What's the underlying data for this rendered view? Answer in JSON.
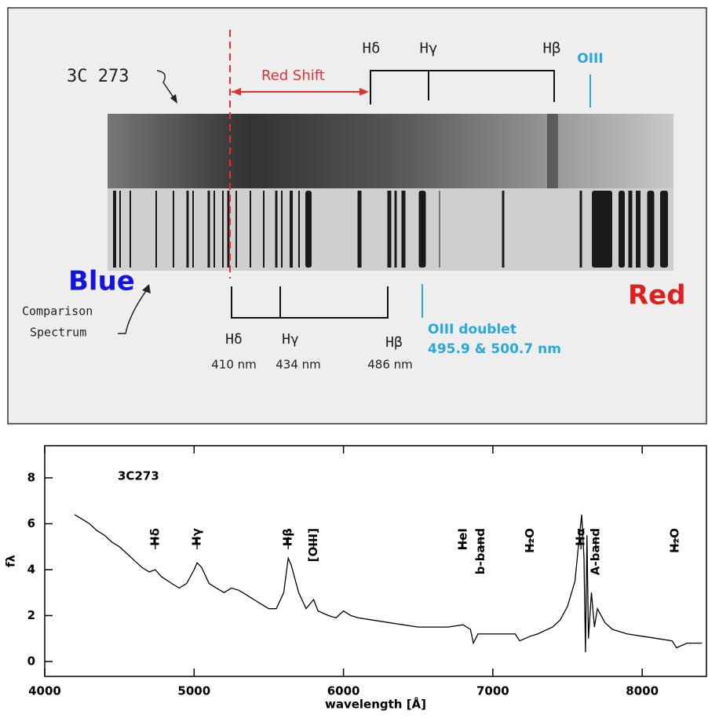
{
  "diagram": {
    "object_label": "3C 273",
    "redshift_label": "Red Shift",
    "observed_lines": [
      "Hδ",
      "Hγ",
      "Hβ"
    ],
    "observed_oiii": "OIII",
    "blue_label": "Blue",
    "red_label": "Red",
    "comparison_label": [
      "Comparison",
      "Spectrum"
    ],
    "rest_lines": [
      {
        "name": "Hδ",
        "wavelength": "410 nm"
      },
      {
        "name": "Hγ",
        "wavelength": "434 nm"
      },
      {
        "name": "Hβ",
        "wavelength": "486 nm"
      }
    ],
    "oiii_label": [
      "OIII doublet",
      "495.9 & 500.7 nm"
    ]
  },
  "chart_data": {
    "type": "line",
    "xlabel": "wavelength [Å]",
    "ylabel": "fλ",
    "annotation": "3C273",
    "x": [
      4200,
      4250,
      4300,
      4350,
      4400,
      4450,
      4500,
      4550,
      4600,
      4650,
      4700,
      4740,
      4780,
      4850,
      4900,
      4950,
      5000,
      5020,
      5050,
      5100,
      5150,
      5200,
      5250,
      5300,
      5350,
      5400,
      5450,
      5500,
      5550,
      5600,
      5630,
      5650,
      5700,
      5750,
      5800,
      5830,
      5900,
      5950,
      6000,
      6050,
      6100,
      6200,
      6300,
      6400,
      6500,
      6600,
      6700,
      6800,
      6850,
      6870,
      6900,
      7000,
      7100,
      7150,
      7180,
      7250,
      7300,
      7400,
      7450,
      7500,
      7550,
      7580,
      7595,
      7610,
      7620,
      7630,
      7640,
      7660,
      7680,
      7700,
      7750,
      7800,
      7900,
      8000,
      8100,
      8200,
      8230,
      8300,
      8400
    ],
    "series": [
      {
        "color": "#000000",
        "values": [
          6.4,
          6.2,
          6.0,
          5.7,
          5.5,
          5.2,
          5.0,
          4.7,
          4.4,
          4.1,
          3.9,
          4.0,
          3.7,
          3.4,
          3.2,
          3.4,
          4.0,
          4.3,
          4.1,
          3.4,
          3.2,
          3.0,
          3.2,
          3.1,
          2.9,
          2.7,
          2.5,
          2.3,
          2.3,
          3.0,
          4.5,
          4.2,
          3.0,
          2.3,
          2.7,
          2.2,
          2.0,
          1.9,
          2.2,
          2.0,
          1.9,
          1.8,
          1.7,
          1.6,
          1.5,
          1.5,
          1.5,
          1.6,
          1.4,
          0.8,
          1.2,
          1.2,
          1.2,
          1.2,
          0.9,
          1.1,
          1.2,
          1.5,
          1.8,
          2.4,
          3.5,
          5.5,
          6.4,
          4.5,
          0.4,
          5.5,
          1.0,
          3.0,
          1.5,
          2.3,
          1.7,
          1.4,
          1.2,
          1.1,
          1.0,
          0.9,
          0.6,
          0.8,
          0.8
        ]
      }
    ],
    "xlim": [
      4000,
      8430
    ],
    "ylim": [
      -0.65,
      9.4
    ],
    "xticks": [
      4000,
      5000,
      6000,
      7000,
      8000
    ],
    "yticks": [
      0,
      2,
      4,
      6,
      8
    ],
    "line_marks": [
      {
        "label": "Hδ",
        "x": 4740
      },
      {
        "label": "Hγ",
        "x": 5020
      },
      {
        "label": "Hβ",
        "x": 5630
      },
      {
        "label": "[OIII]",
        "x": 5800
      },
      {
        "label": "HeI",
        "x": 6800
      },
      {
        "label": "b-band",
        "x": 6920
      },
      {
        "label": "H₂O",
        "x": 7250
      },
      {
        "label": "Hα",
        "x": 7590
      },
      {
        "label": "A-band",
        "x": 7690
      },
      {
        "label": "H₂O",
        "x": 8220
      }
    ]
  }
}
